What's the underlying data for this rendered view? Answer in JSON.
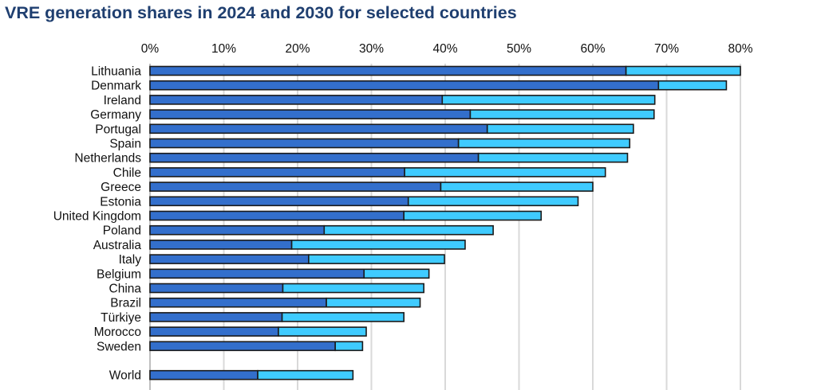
{
  "chart_data": {
    "type": "bar",
    "orientation": "horizontal",
    "stacked": true,
    "title": "VRE generation shares in 2024 and 2030 for selected countries",
    "xlabel": "",
    "ylabel": "",
    "xlim": [
      0,
      80
    ],
    "xticks": [
      "0%",
      "10%",
      "20%",
      "30%",
      "40%",
      "50%",
      "60%",
      "70%",
      "80%"
    ],
    "xtick_values": [
      0,
      10,
      20,
      30,
      40,
      50,
      60,
      70,
      80
    ],
    "tick_position": "top",
    "grid": true,
    "legend": "none",
    "categories": [
      "Lithuania",
      "Denmark",
      "Ireland",
      "Germany",
      "Portugal",
      "Spain",
      "Netherlands",
      "Chile",
      "Greece",
      "Estonia",
      "United Kingdom",
      "Poland",
      "Australia",
      "Italy",
      "Belgium",
      "China",
      "Brazil",
      "Türkiye",
      "Morocco",
      "Sweden",
      "",
      "World"
    ],
    "series": [
      {
        "name": "2024",
        "color": "#336fcc",
        "values": [
          64.5,
          68.9,
          39.6,
          43.4,
          45.7,
          41.8,
          44.5,
          34.5,
          39.4,
          35.0,
          34.4,
          23.6,
          19.2,
          21.5,
          29.0,
          18.0,
          23.9,
          17.9,
          17.4,
          25.1,
          null,
          14.6
        ]
      },
      {
        "name": "2030",
        "color": "#3fcbff",
        "values": [
          80.0,
          78.1,
          68.4,
          68.3,
          65.5,
          65.0,
          64.7,
          61.7,
          60.0,
          58.0,
          53.0,
          46.5,
          42.7,
          39.9,
          37.8,
          37.1,
          36.6,
          34.4,
          29.3,
          28.8,
          null,
          27.5
        ]
      }
    ],
    "note": "Second series values are the 2030 total share; the light segment spans from the 2024 share to the 2030 share."
  },
  "colors": {
    "title": "#1f3f70",
    "grid": "#d9d9d9",
    "axis": "#bfbfbf",
    "bar_outline": "#1a1a1a"
  }
}
